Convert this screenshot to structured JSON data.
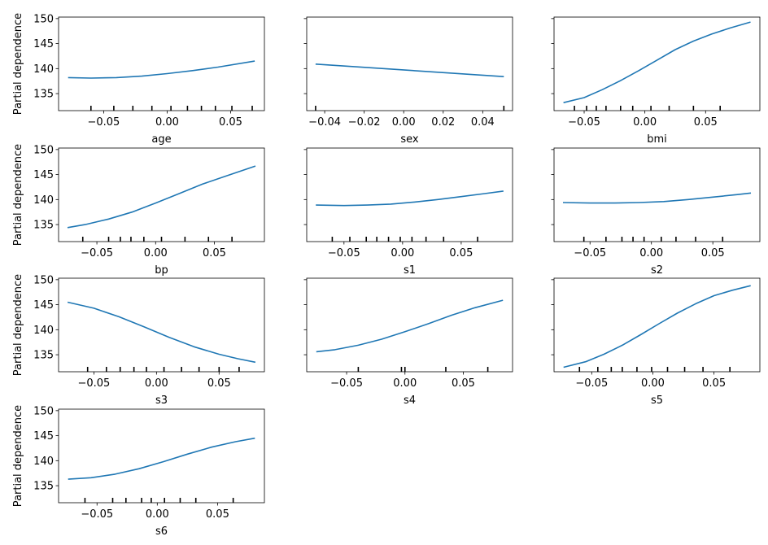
{
  "colors": {
    "line": "#1f77b4",
    "axes": "#000000",
    "background": "#ffffff"
  },
  "chart_data": [
    {
      "type": "line",
      "xlabel": "age",
      "ylabel": "Partial dependence",
      "ylim": [
        131.6,
        150.3
      ],
      "yticks": [
        135,
        140,
        145,
        150
      ],
      "xlim": [
        -0.0855,
        0.0766
      ],
      "xticks": [
        -0.05,
        0.0,
        0.05
      ],
      "xtick_labels": [
        "−0.05",
        "0.00",
        "0.05"
      ],
      "deciles": [
        -0.06,
        -0.042,
        -0.027,
        -0.012,
        0.003,
        0.016,
        0.027,
        0.038,
        0.051,
        0.067
      ],
      "x": [
        -0.078,
        -0.06,
        -0.04,
        -0.02,
        0.0,
        0.02,
        0.04,
        0.069
      ],
      "y": [
        138.2,
        138.1,
        138.2,
        138.5,
        139.0,
        139.6,
        140.3,
        141.5
      ]
    },
    {
      "type": "line",
      "xlabel": "sex",
      "ylabel": "",
      "ylim": [
        131.6,
        150.3
      ],
      "yticks": [
        135,
        140,
        145,
        150
      ],
      "xlim": [
        -0.0491,
        0.0551
      ],
      "xticks": [
        -0.04,
        -0.02,
        0.0,
        0.02,
        0.04
      ],
      "xtick_labels": [
        "−0.04",
        "−0.02",
        "0.00",
        "0.02",
        "0.04"
      ],
      "deciles": [
        -0.0446,
        0.0507
      ],
      "x": [
        -0.0446,
        0.0507
      ],
      "y": [
        140.9,
        138.4
      ]
    },
    {
      "type": "line",
      "xlabel": "bmi",
      "ylabel": "",
      "ylim": [
        131.6,
        150.3
      ],
      "yticks": [
        135,
        140,
        145,
        150
      ],
      "xlim": [
        -0.0748,
        0.0947
      ],
      "xticks": [
        -0.05,
        0.0,
        0.05
      ],
      "xtick_labels": [
        "−0.05",
        "0.00",
        "0.05"
      ],
      "deciles": [
        -0.058,
        -0.048,
        -0.04,
        -0.032,
        -0.02,
        -0.01,
        0.005,
        0.02,
        0.04,
        0.062
      ],
      "x": [
        -0.067,
        -0.05,
        -0.035,
        -0.02,
        -0.005,
        0.01,
        0.025,
        0.04,
        0.055,
        0.07,
        0.087
      ],
      "y": [
        133.2,
        134.2,
        135.8,
        137.6,
        139.6,
        141.7,
        143.8,
        145.5,
        146.9,
        148.1,
        149.3
      ]
    },
    {
      "type": "line",
      "xlabel": "bp",
      "ylabel": "Partial dependence",
      "ylim": [
        131.6,
        150.3
      ],
      "yticks": [
        135,
        140,
        145,
        150
      ],
      "xlim": [
        -0.0826,
        0.0926
      ],
      "xticks": [
        -0.05,
        0.0,
        0.05
      ],
      "xtick_labels": [
        "−0.05",
        "0.00",
        "0.05"
      ],
      "deciles": [
        -0.062,
        -0.04,
        -0.03,
        -0.021,
        -0.01,
        0.005,
        0.025,
        0.045,
        0.065
      ],
      "x": [
        -0.075,
        -0.06,
        -0.04,
        -0.02,
        0.0,
        0.02,
        0.04,
        0.06,
        0.085
      ],
      "y": [
        134.4,
        135.0,
        136.1,
        137.5,
        139.3,
        141.2,
        143.1,
        144.7,
        146.7
      ]
    },
    {
      "type": "line",
      "xlabel": "s1",
      "ylabel": "",
      "ylim": [
        131.6,
        150.3
      ],
      "yticks": [
        135,
        140,
        145,
        150
      ],
      "xlim": [
        -0.0818,
        0.0938
      ],
      "xticks": [
        -0.05,
        0.0,
        0.05
      ],
      "xtick_labels": [
        "−0.05",
        "0.00",
        "0.05"
      ],
      "deciles": [
        -0.06,
        -0.045,
        -0.031,
        -0.022,
        -0.012,
        -0.002,
        0.008,
        0.02,
        0.035,
        0.064
      ],
      "x": [
        -0.074,
        -0.05,
        -0.03,
        -0.01,
        0.01,
        0.03,
        0.05,
        0.07,
        0.086
      ],
      "y": [
        138.9,
        138.8,
        138.9,
        139.1,
        139.5,
        140.0,
        140.6,
        141.2,
        141.7
      ]
    },
    {
      "type": "line",
      "xlabel": "s2",
      "ylabel": "",
      "ylim": [
        131.6,
        150.3
      ],
      "yticks": [
        135,
        140,
        145,
        150
      ],
      "xlim": [
        -0.0793,
        0.0883
      ],
      "xticks": [
        -0.05,
        0.0,
        0.05
      ],
      "xtick_labels": [
        "−0.05",
        "0.00",
        "0.05"
      ],
      "deciles": [
        -0.055,
        -0.037,
        -0.024,
        -0.015,
        -0.006,
        0.008,
        0.02,
        0.036,
        0.058
      ],
      "x": [
        -0.072,
        -0.05,
        -0.03,
        -0.01,
        0.01,
        0.03,
        0.05,
        0.07,
        0.081
      ],
      "y": [
        139.4,
        139.3,
        139.3,
        139.4,
        139.6,
        140.0,
        140.5,
        141.0,
        141.3
      ]
    },
    {
      "type": "line",
      "xlabel": "s3",
      "ylabel": "Partial dependence",
      "ylim": [
        131.6,
        150.3
      ],
      "yticks": [
        135,
        140,
        145,
        150
      ],
      "xlim": [
        -0.0782,
        0.0862
      ],
      "xticks": [
        -0.05,
        0.0,
        0.05
      ],
      "xtick_labels": [
        "−0.05",
        "0.00",
        "0.05"
      ],
      "deciles": [
        -0.055,
        -0.04,
        -0.029,
        -0.018,
        -0.008,
        0.006,
        0.02,
        0.034,
        0.05,
        0.066
      ],
      "x": [
        -0.071,
        -0.05,
        -0.03,
        -0.01,
        0.01,
        0.03,
        0.05,
        0.065,
        0.079
      ],
      "y": [
        145.5,
        144.3,
        142.6,
        140.6,
        138.5,
        136.6,
        135.1,
        134.2,
        133.5
      ]
    },
    {
      "type": "line",
      "xlabel": "s4",
      "ylabel": "",
      "ylim": [
        131.6,
        150.3
      ],
      "yticks": [
        135,
        140,
        145,
        150
      ],
      "xlim": [
        -0.0842,
        0.0922
      ],
      "xticks": [
        -0.05,
        0.0,
        0.05
      ],
      "xtick_labels": [
        "−0.05",
        "0.00",
        "0.05"
      ],
      "deciles": [
        -0.04,
        -0.003,
        0.0,
        0.035,
        0.071
      ],
      "x": [
        -0.076,
        -0.06,
        -0.04,
        -0.02,
        0.0,
        0.02,
        0.04,
        0.06,
        0.084
      ],
      "y": [
        135.6,
        136.0,
        136.9,
        138.1,
        139.6,
        141.2,
        142.9,
        144.4,
        145.9
      ]
    },
    {
      "type": "line",
      "xlabel": "s5",
      "ylabel": "",
      "ylim": [
        131.6,
        150.3
      ],
      "yticks": [
        135,
        140,
        145,
        150
      ],
      "xlim": [
        -0.0808,
        0.0875
      ],
      "xticks": [
        -0.05,
        0.0,
        0.05
      ],
      "xtick_labels": [
        "−0.05",
        "0.00",
        "0.05"
      ],
      "deciles": [
        -0.06,
        -0.045,
        -0.034,
        -0.025,
        -0.013,
        -0.001,
        0.012,
        0.026,
        0.041,
        0.063
      ],
      "x": [
        -0.073,
        -0.055,
        -0.04,
        -0.025,
        -0.01,
        0.005,
        0.02,
        0.035,
        0.05,
        0.065,
        0.08
      ],
      "y": [
        132.5,
        133.6,
        135.1,
        136.9,
        139.0,
        141.2,
        143.3,
        145.2,
        146.8,
        147.9,
        148.8
      ]
    },
    {
      "type": "line",
      "xlabel": "s6",
      "ylabel": "Partial dependence",
      "ylim": [
        131.6,
        150.3
      ],
      "yticks": [
        135,
        140,
        145,
        150
      ],
      "xlim": [
        -0.0819,
        0.0889
      ],
      "xticks": [
        -0.05,
        0.0,
        0.05
      ],
      "xtick_labels": [
        "−0.05",
        "0.00",
        "0.05"
      ],
      "deciles": [
        -0.06,
        -0.037,
        -0.026,
        -0.013,
        -0.005,
        0.006,
        0.019,
        0.032,
        0.063
      ],
      "x": [
        -0.074,
        -0.055,
        -0.035,
        -0.015,
        0.005,
        0.025,
        0.045,
        0.065,
        0.081
      ],
      "y": [
        136.3,
        136.6,
        137.3,
        138.4,
        139.8,
        141.3,
        142.7,
        143.8,
        144.5
      ]
    }
  ]
}
